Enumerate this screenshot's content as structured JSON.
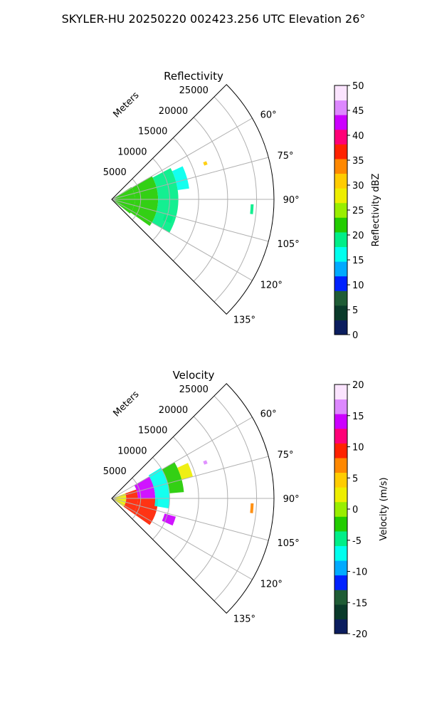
{
  "figure": {
    "title": "SKYLER-HU  20250220  002423.256 UTC Elevation 26°"
  },
  "chart_data": [
    {
      "type": "heatmap",
      "title": "Reflectivity",
      "range_axis_label": "Meters",
      "range_ticks": [
        "5000",
        "10000",
        "15000",
        "20000",
        "25000"
      ],
      "range_values": [
        5000,
        10000,
        15000,
        20000,
        25000
      ],
      "azimuth_ticks": [
        "60°",
        "75°",
        "90°",
        "105°",
        "120°",
        "135°"
      ],
      "azimuth_values": [
        60,
        75,
        90,
        105,
        120,
        135
      ],
      "azimuth_lim": [
        45,
        135
      ],
      "range_lim": [
        0,
        28000
      ],
      "grid": true,
      "colorbar": {
        "label": "Reflectivity dBZ",
        "ticks": [
          "0",
          "5",
          "10",
          "15",
          "20",
          "25",
          "30",
          "35",
          "40",
          "45",
          "50"
        ],
        "values": [
          0,
          5,
          10,
          15,
          20,
          25,
          30,
          35,
          40,
          45,
          50
        ],
        "lim": [
          0,
          50
        ]
      },
      "echoes": [
        {
          "az_min": 58,
          "az_max": 128,
          "r_min": 0,
          "r_max": 4000,
          "value": 23
        },
        {
          "az_min": 60,
          "az_max": 125,
          "r_min": 4000,
          "r_max": 8000,
          "value": 21
        },
        {
          "az_min": 62,
          "az_max": 120,
          "r_min": 8000,
          "r_max": 11500,
          "value": 18
        },
        {
          "az_min": 65,
          "az_max": 82,
          "r_min": 11500,
          "r_max": 13500,
          "value": 15
        },
        {
          "az_min": 106,
          "az_max": 112,
          "r_min": 9500,
          "r_max": 11000,
          "value": 18
        },
        {
          "az_min": 68,
          "az_max": 70,
          "r_min": 17000,
          "r_max": 17600,
          "value": 30
        },
        {
          "az_min": 92,
          "az_max": 96,
          "r_min": 24000,
          "r_max": 24500,
          "value": 20
        }
      ]
    },
    {
      "type": "heatmap",
      "title": "Velocity",
      "range_axis_label": "Meters",
      "range_ticks": [
        "5000",
        "10000",
        "15000",
        "20000",
        "25000"
      ],
      "range_values": [
        5000,
        10000,
        15000,
        20000,
        25000
      ],
      "azimuth_ticks": [
        "60°",
        "75°",
        "90°",
        "105°",
        "120°",
        "135°"
      ],
      "azimuth_values": [
        60,
        75,
        90,
        105,
        120,
        135
      ],
      "azimuth_lim": [
        45,
        135
      ],
      "range_lim": [
        0,
        28000
      ],
      "grid": true,
      "colorbar": {
        "label": "Velocity (m/s)",
        "ticks": [
          "-20",
          "-15",
          "-10",
          "-5",
          "0",
          "5",
          "10",
          "15",
          "20"
        ],
        "values": [
          -20,
          -15,
          -10,
          -5,
          0,
          5,
          10,
          15,
          20
        ],
        "lim": [
          -20,
          20
        ]
      },
      "echoes": [
        {
          "az_min": 70,
          "az_max": 125,
          "r_min": 0,
          "r_max": 2500,
          "value": 2
        },
        {
          "az_min": 70,
          "az_max": 125,
          "r_min": 2500,
          "r_max": 4500,
          "value": 10
        },
        {
          "az_min": 60,
          "az_max": 90,
          "r_min": 4500,
          "r_max": 7500,
          "value": 14
        },
        {
          "az_min": 90,
          "az_max": 125,
          "r_min": 4500,
          "r_max": 8000,
          "value": 9
        },
        {
          "az_min": 58,
          "az_max": 100,
          "r_min": 7500,
          "r_max": 10000,
          "value": -7
        },
        {
          "az_min": 60,
          "az_max": 85,
          "r_min": 10000,
          "r_max": 12500,
          "value": -2
        },
        {
          "az_min": 65,
          "az_max": 75,
          "r_min": 12500,
          "r_max": 14500,
          "value": 2
        },
        {
          "az_min": 106,
          "az_max": 114,
          "r_min": 9500,
          "r_max": 11500,
          "value": 14
        },
        {
          "az_min": 68,
          "az_max": 70,
          "r_min": 17000,
          "r_max": 17600,
          "value": 16
        },
        {
          "az_min": 92,
          "az_max": 96,
          "r_min": 24000,
          "r_max": 24500,
          "value": 8
        }
      ]
    }
  ]
}
